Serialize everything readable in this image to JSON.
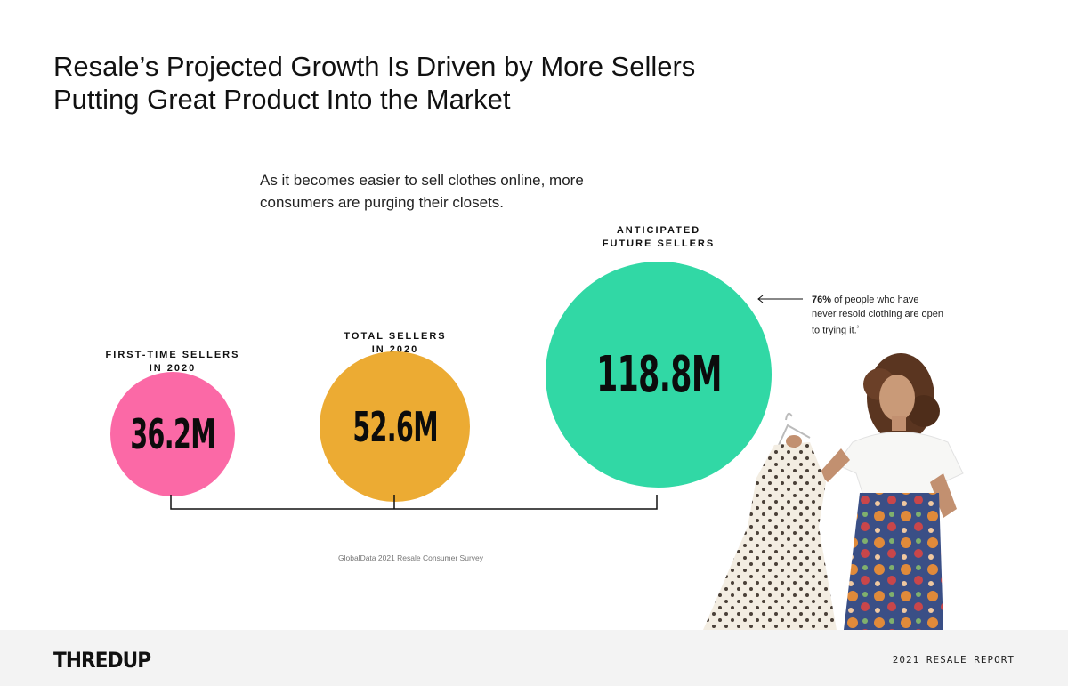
{
  "header": {
    "title": "Resale’s Projected Growth Is Driven by More Sellers Putting Great Product Into the Market",
    "subtitle": "As it becomes easier to sell clothes online, more consumers are purging their closets."
  },
  "chart_data": {
    "type": "bubble",
    "categories": [
      "FIRST-TIME SELLERS IN 2020",
      "TOTAL SELLERS IN 2020",
      "ANTICIPATED FUTURE SELLERS"
    ],
    "values": [
      36.2,
      52.6,
      118.8
    ],
    "unit": "M",
    "value_labels": [
      "36.2M",
      "52.6M",
      "118.8M"
    ],
    "colors": [
      "#fb69a6",
      "#ecab33",
      "#31d8a5"
    ]
  },
  "annotation": {
    "bold": "76%",
    "text": " of people who have never resold clothing are open to trying it.",
    "footnote": "²"
  },
  "source": "GlobalData 2021 Resale Consumer Survey",
  "footer": {
    "logo": "THREDUP",
    "report": "2021 RESALE REPORT"
  }
}
